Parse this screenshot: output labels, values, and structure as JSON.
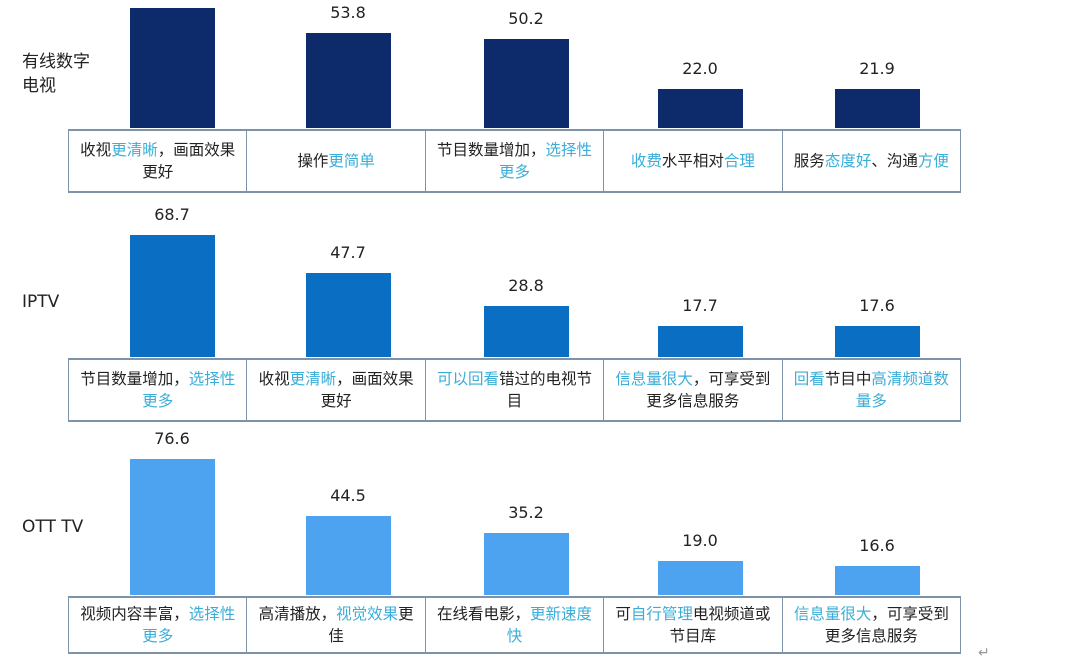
{
  "chart_data": [
    {
      "type": "bar",
      "series_label": "有线数字电视",
      "color": "#0d2a6b",
      "values": [
        68.0,
        53.8,
        50.2,
        22.0,
        21.9
      ],
      "value_labels": [
        "",
        "53.8",
        "50.2",
        "22.0",
        "21.9"
      ],
      "categories": [
        [
          {
            "t": "收视"
          },
          {
            "t": "更清晰",
            "h": true
          },
          {
            "t": "，画面效果更好"
          }
        ],
        [
          {
            "t": "操作"
          },
          {
            "t": "更简单",
            "h": true
          }
        ],
        [
          {
            "t": "节目数量增加，"
          },
          {
            "t": "选择性更多",
            "h": true
          }
        ],
        [
          {
            "t": "收费",
            "h": true
          },
          {
            "t": "水平相对"
          },
          {
            "t": "合理",
            "h": true
          }
        ],
        [
          {
            "t": "服务"
          },
          {
            "t": "态度好",
            "h": true
          },
          {
            "t": "、沟通"
          },
          {
            "t": "方便",
            "h": true
          }
        ]
      ]
    },
    {
      "type": "bar",
      "series_label": "IPTV",
      "color": "#0a6fc2",
      "values": [
        68.7,
        47.7,
        28.8,
        17.7,
        17.6
      ],
      "value_labels": [
        "68.7",
        "47.7",
        "28.8",
        "17.7",
        "17.6"
      ],
      "categories": [
        [
          {
            "t": "节目数量增加，"
          },
          {
            "t": "选择性更多",
            "h": true
          }
        ],
        [
          {
            "t": "收视"
          },
          {
            "t": "更清晰",
            "h": true
          },
          {
            "t": "，画面效果更好"
          }
        ],
        [
          {
            "t": "可以回看",
            "h": true
          },
          {
            "t": "错过的电视节目"
          }
        ],
        [
          {
            "t": "信息量很大",
            "h": true
          },
          {
            "t": "，可享受到更多信息服务"
          }
        ],
        [
          {
            "t": "回看",
            "h": true
          },
          {
            "t": "节目中"
          },
          {
            "t": "高清频道数量多",
            "h": true
          }
        ]
      ]
    },
    {
      "type": "bar",
      "series_label": "OTT TV",
      "color": "#4da3f0",
      "values": [
        76.6,
        44.5,
        35.2,
        19.0,
        16.6
      ],
      "value_labels": [
        "76.6",
        "44.5",
        "35.2",
        "19.0",
        "16.6"
      ],
      "categories": [
        [
          {
            "t": "视频内容丰富，"
          },
          {
            "t": "选择性更多",
            "h": true
          }
        ],
        [
          {
            "t": "高清播放，"
          },
          {
            "t": "视觉效果",
            "h": true
          },
          {
            "t": "更佳"
          }
        ],
        [
          {
            "t": "在线看电影，"
          },
          {
            "t": "更新速度快",
            "h": true
          }
        ],
        [
          {
            "t": "可"
          },
          {
            "t": "自行管理",
            "h": true
          },
          {
            "t": "电视频道或节目库"
          }
        ],
        [
          {
            "t": "信息量很大",
            "h": true
          },
          {
            "t": "，可享受到更多信息服务"
          }
        ]
      ]
    }
  ],
  "highlight_color": "#3aaed8",
  "return_mark": "↵"
}
